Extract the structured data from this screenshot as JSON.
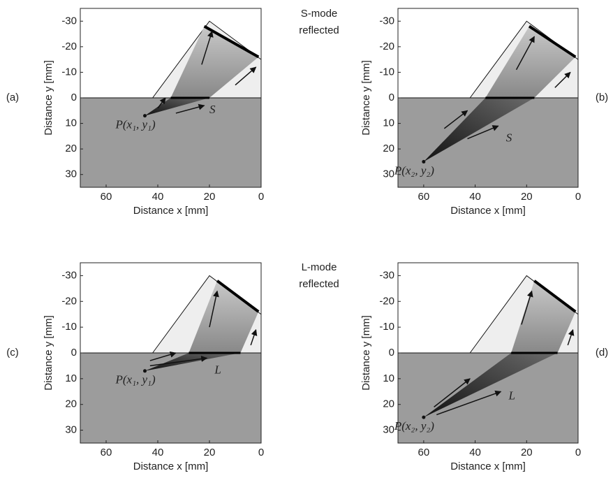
{
  "panels": [
    {
      "label": "(a)",
      "x_label": "Distance x [mm]",
      "y_label": "Distance y [mm]",
      "xlim": [
        70,
        0
      ],
      "ylim": [
        -35,
        35
      ],
      "xticks": [
        60,
        40,
        20,
        0
      ],
      "yticks": [
        -30,
        -20,
        -10,
        0,
        10,
        20,
        30
      ],
      "point_label": "P(x₁, y₁)",
      "wave_label": "S"
    },
    {
      "label": "(b)",
      "x_label": "Distance x [mm]",
      "y_label": "Distance y [mm]",
      "xlim": [
        70,
        0
      ],
      "ylim": [
        -35,
        35
      ],
      "xticks": [
        60,
        40,
        20,
        0
      ],
      "yticks": [
        -30,
        -20,
        -10,
        0,
        10,
        20,
        30
      ],
      "point_label": "P(x₂, y₂)",
      "wave_label": "S"
    },
    {
      "label": "(c)",
      "x_label": "Distance x [mm]",
      "y_label": "Distance y [mm]",
      "xlim": [
        70,
        0
      ],
      "ylim": [
        -35,
        35
      ],
      "xticks": [
        60,
        40,
        20,
        0
      ],
      "yticks": [
        -30,
        -20,
        -10,
        0,
        10,
        20,
        30
      ],
      "point_label": "P(x₁, y₁)",
      "wave_label": "L"
    },
    {
      "label": "(d)",
      "x_label": "Distance x [mm]",
      "y_label": "Distance y [mm]",
      "xlim": [
        70,
        0
      ],
      "ylim": [
        -35,
        35
      ],
      "xticks": [
        60,
        40,
        20,
        0
      ],
      "yticks": [
        -30,
        -20,
        -10,
        0,
        10,
        20,
        30
      ],
      "point_label": "P(x₂, y₂)",
      "wave_label": "L"
    }
  ],
  "mode_labels": [
    [
      "S-mode",
      "reflected"
    ],
    [
      "L-mode",
      "reflected"
    ]
  ]
}
